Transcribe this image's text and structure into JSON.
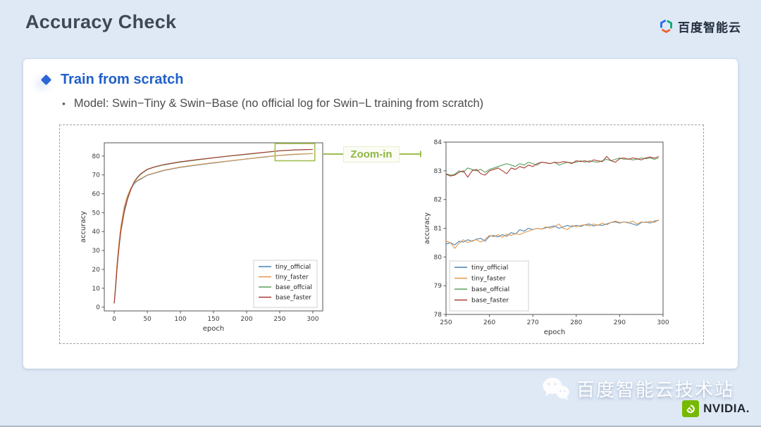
{
  "page": {
    "title": "Accuracy Check"
  },
  "header": {
    "logo_text": "百度智能云"
  },
  "content": {
    "bullet_title": "Train from scratch",
    "sub_bullet": "Model: Swin−Tiny & Swin−Base (no official log for Swin−L training from scratch)",
    "zoom_label": "Zoom-in"
  },
  "footer": {
    "wechat_name": "百度智能云技术站",
    "nvidia_text": "NVIDIA."
  },
  "colors": {
    "slide_bg": "#dfe9f6",
    "accent_blue": "#2160cb",
    "zoom_green": "#9ebf4e",
    "highlight_box_green": "#a4bf4f",
    "nvidia_green": "#76b900",
    "series_blue": "#4682b4",
    "series_orange": "#e2984c",
    "series_green": "#58a15f",
    "series_red": "#ab3a34"
  },
  "chart_data": [
    {
      "type": "line",
      "title": "",
      "xlabel": "epoch",
      "ylabel": "accuracy",
      "xlim": [
        -15,
        315
      ],
      "ylim": [
        -2,
        87
      ],
      "xticks": [
        0,
        50,
        100,
        150,
        200,
        250,
        300
      ],
      "yticks": [
        0,
        10,
        20,
        30,
        40,
        50,
        60,
        70,
        80
      ],
      "grid": false,
      "legend_position": "lower right",
      "x": [
        0,
        2,
        4,
        6,
        8,
        10,
        12,
        15,
        20,
        25,
        30,
        35,
        40,
        50,
        60,
        75,
        100,
        125,
        150,
        175,
        200,
        225,
        250,
        275,
        300
      ],
      "series": [
        {
          "name": "tiny_official",
          "color": "#4682b4",
          "values": [
            2,
            11,
            21,
            29,
            36,
            42,
            46,
            52,
            58.5,
            62.5,
            65.3,
            66.8,
            67.8,
            69.8,
            70.8,
            72.3,
            74.0,
            75.2,
            76.3,
            77.4,
            78.4,
            79.4,
            80.3,
            80.9,
            81.3
          ]
        },
        {
          "name": "tiny_faster",
          "color": "#e2984c",
          "values": [
            2.2,
            12,
            22,
            30,
            37,
            43,
            47,
            53,
            59,
            63,
            65.6,
            67.1,
            68.1,
            70.0,
            71.0,
            72.5,
            74.2,
            75.4,
            76.5,
            77.5,
            78.5,
            79.5,
            80.4,
            81.0,
            81.3
          ]
        },
        {
          "name": "base_offcial",
          "color": "#58a15f",
          "values": [
            2,
            10,
            19,
            27,
            34,
            40,
            44,
            50,
            57,
            62,
            66,
            68.5,
            70.3,
            72.8,
            74.0,
            75.3,
            76.8,
            77.9,
            79.0,
            80.0,
            80.9,
            81.8,
            82.7,
            83.2,
            83.45
          ]
        },
        {
          "name": "base_faster",
          "color": "#ab3a34",
          "values": [
            2.1,
            10,
            19,
            27,
            34,
            40,
            44.2,
            50.3,
            57.2,
            62.3,
            66.3,
            68.8,
            70.6,
            73.0,
            74.2,
            75.5,
            77.0,
            78.1,
            79.1,
            80.1,
            81.0,
            81.9,
            82.8,
            83.3,
            83.5
          ]
        }
      ],
      "annotation_box": {
        "x_range": [
          243,
          303
        ],
        "y_range": [
          77.5,
          86.6
        ],
        "color": "#a4bf4f"
      }
    },
    {
      "type": "line",
      "title": "",
      "xlabel": "epoch",
      "ylabel": "accuracy",
      "xlim": [
        250,
        300
      ],
      "ylim": [
        78,
        84
      ],
      "xticks": [
        250,
        260,
        270,
        280,
        290,
        300
      ],
      "yticks": [
        78,
        79,
        80,
        81,
        82,
        83,
        84
      ],
      "grid": false,
      "legend_position": "lower left",
      "x": [
        250,
        251,
        252,
        253,
        254,
        255,
        256,
        257,
        258,
        259,
        260,
        261,
        262,
        263,
        264,
        265,
        266,
        267,
        268,
        269,
        270,
        271,
        272,
        273,
        274,
        275,
        276,
        277,
        278,
        279,
        280,
        281,
        282,
        283,
        284,
        285,
        286,
        287,
        288,
        289,
        290,
        291,
        292,
        293,
        294,
        295,
        296,
        297,
        298,
        299
      ],
      "series": [
        {
          "name": "tiny_official",
          "color": "#4682b4",
          "values": [
            80.45,
            80.5,
            80.42,
            80.55,
            80.52,
            80.6,
            80.55,
            80.62,
            80.65,
            80.55,
            80.72,
            80.75,
            80.7,
            80.78,
            80.72,
            80.85,
            80.8,
            80.95,
            80.9,
            81.0,
            80.95,
            81.0,
            80.97,
            81.02,
            81.05,
            81.08,
            81.0,
            81.05,
            81.1,
            81.05,
            81.1,
            81.06,
            81.12,
            81.15,
            81.08,
            81.12,
            81.1,
            81.15,
            81.2,
            81.22,
            81.18,
            81.22,
            81.2,
            81.15,
            81.1,
            81.2,
            81.22,
            81.18,
            81.25,
            81.28
          ]
        },
        {
          "name": "tiny_faster",
          "color": "#e2984c",
          "values": [
            80.55,
            80.5,
            80.3,
            80.48,
            80.6,
            80.5,
            80.57,
            80.6,
            80.52,
            80.62,
            80.75,
            80.7,
            80.78,
            80.68,
            80.8,
            80.75,
            80.82,
            80.78,
            80.85,
            80.9,
            80.95,
            81.0,
            80.97,
            81.05,
            81.0,
            81.05,
            81.15,
            81.0,
            80.95,
            81.1,
            81.05,
            81.1,
            81.12,
            81.08,
            81.15,
            81.1,
            81.18,
            81.12,
            81.2,
            81.25,
            81.2,
            81.22,
            81.18,
            81.25,
            81.15,
            81.22,
            81.2,
            81.25,
            81.2,
            81.3
          ]
        },
        {
          "name": "base_offcial",
          "color": "#58a15f",
          "values": [
            82.9,
            82.85,
            82.88,
            83.0,
            82.95,
            83.1,
            83.05,
            83.0,
            83.05,
            82.95,
            83.05,
            83.1,
            83.15,
            83.2,
            83.25,
            83.2,
            83.15,
            83.25,
            83.2,
            83.3,
            83.25,
            83.2,
            83.3,
            83.28,
            83.25,
            83.3,
            83.2,
            83.25,
            83.3,
            83.28,
            83.3,
            83.35,
            83.3,
            83.35,
            83.32,
            83.3,
            83.35,
            83.4,
            83.35,
            83.4,
            83.45,
            83.4,
            83.42,
            83.38,
            83.4,
            83.45,
            83.42,
            83.45,
            83.4,
            83.45
          ]
        },
        {
          "name": "base_faster",
          "color": "#ab3a34",
          "values": [
            82.88,
            82.82,
            82.85,
            82.95,
            83.0,
            82.78,
            83.0,
            83.05,
            82.9,
            82.85,
            83.0,
            83.05,
            83.1,
            83.0,
            82.9,
            83.1,
            83.05,
            83.15,
            83.1,
            83.2,
            83.15,
            83.25,
            83.3,
            83.28,
            83.25,
            83.3,
            83.28,
            83.32,
            83.3,
            83.25,
            83.35,
            83.32,
            83.35,
            83.3,
            83.38,
            83.35,
            83.32,
            83.5,
            83.35,
            83.3,
            83.42,
            83.45,
            83.4,
            83.45,
            83.42,
            83.38,
            83.45,
            83.48,
            83.44,
            83.5
          ]
        }
      ]
    }
  ]
}
